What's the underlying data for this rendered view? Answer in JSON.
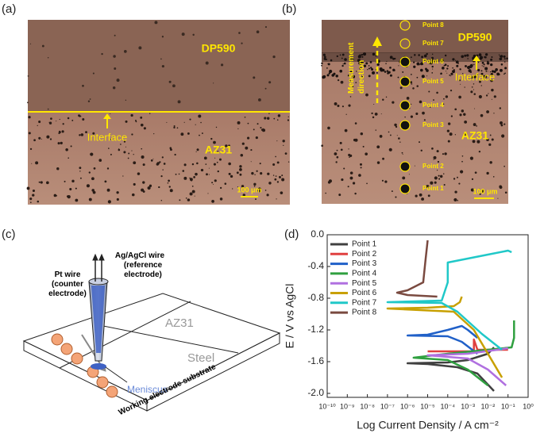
{
  "panels": {
    "a": {
      "label": "(a)",
      "top": "DP590",
      "interface": "Interface",
      "bottom": "AZ31",
      "scale": "100 μm"
    },
    "b": {
      "label": "(b)",
      "top": "DP590",
      "interface": "Interface",
      "bottom": "AZ31",
      "scale": "100 μm",
      "direction": [
        "Measurement",
        "direction"
      ],
      "points": [
        "Point 8",
        "Point 7",
        "Point 6",
        "Point 5",
        "Point 4",
        "Point 3",
        "Point 2",
        "Point 1"
      ]
    },
    "c": {
      "label": "(c)",
      "pt_wire": [
        "Pt wire",
        "(counter",
        "electrode)"
      ],
      "ref_wire": [
        "Ag/AgCl wire",
        "(reference",
        "electrode)"
      ],
      "az31": "AZ31",
      "steel": "Steel",
      "meniscus": "Meniscus",
      "substrate": "Working electrode substrate"
    },
    "d": {
      "label": "(d)"
    }
  },
  "chart_data": {
    "type": "line",
    "xlabel": "Log Current Density / A cm⁻²",
    "ylabel": "E / V vs AgCl",
    "xscale": "log",
    "xlim": [
      1e-10,
      1
    ],
    "ylim": [
      -2.05,
      0
    ],
    "xticks": [
      {
        "value": 1e-10,
        "label": "10⁻¹⁰"
      },
      {
        "value": 1e-09,
        "label": "10⁻⁹"
      },
      {
        "value": 1e-08,
        "label": "10⁻⁸"
      },
      {
        "value": 1e-07,
        "label": "10⁻⁷"
      },
      {
        "value": 1e-06,
        "label": "10⁻⁶"
      },
      {
        "value": 1e-05,
        "label": "10⁻⁵"
      },
      {
        "value": 0.0001,
        "label": "10⁻⁴"
      },
      {
        "value": 0.001,
        "label": "10⁻³"
      },
      {
        "value": 0.01,
        "label": "10⁻²"
      },
      {
        "value": 0.1,
        "label": "10⁻¹"
      },
      {
        "value": 1,
        "label": "10⁰"
      }
    ],
    "yticks": [
      {
        "value": 0,
        "label": "0.0"
      },
      -0.4,
      -0.8,
      -1.2,
      -1.6,
      {
        "value": -2,
        "label": "-2.0"
      }
    ],
    "legend": "upper left",
    "series": [
      {
        "name": "Point 1",
        "color": "#404040",
        "x": [
          0.02,
          0.003,
          0.0003,
          1e-05,
          1e-06,
          0.0001,
          0.001,
          0.01,
          0.02
        ],
        "values": [
          -1.97,
          -1.75,
          -1.67,
          -1.63,
          -1.62,
          -1.61,
          -1.58,
          -1.5,
          -1.42
        ]
      },
      {
        "name": "Point 2",
        "color": "#e04040",
        "x": [
          1e-05,
          0.001,
          0.002,
          0.002,
          0.003,
          0.1
        ],
        "values": [
          -1.47,
          -1.47,
          -1.47,
          -1.32,
          -1.45,
          -1.45
        ]
      },
      {
        "name": "Point 3",
        "color": "#2060c8",
        "x": [
          0.003,
          0.0005,
          0.0001,
          1e-06,
          1e-05,
          0.0001,
          0.0005,
          0.001,
          0.003
        ],
        "values": [
          -1.5,
          -1.35,
          -1.28,
          -1.27,
          -1.26,
          -1.2,
          -1.15,
          -1.2,
          -1.3
        ]
      },
      {
        "name": "Point 4",
        "color": "#30a040",
        "x": [
          0.01,
          0.001,
          0.0001,
          2e-06,
          0.0001,
          0.01,
          0.15,
          0.2,
          0.2
        ],
        "values": [
          -1.9,
          -1.7,
          -1.58,
          -1.55,
          -1.5,
          -1.45,
          -1.42,
          -1.3,
          -1.08
        ]
      },
      {
        "name": "Point 5",
        "color": "#b070e0",
        "x": [
          0.08,
          0.01,
          0.001,
          1e-05,
          0.001,
          0.03,
          0.1
        ],
        "values": [
          -1.9,
          -1.7,
          -1.56,
          -1.52,
          -1.5,
          -1.45,
          -1.43
        ]
      },
      {
        "name": "Point 6",
        "color": "#c8a000",
        "x": [
          0.05,
          0.01,
          0.002,
          0.0002,
          1e-07,
          1e-05,
          0.0002,
          0.0004,
          0.0005
        ],
        "values": [
          -1.8,
          -1.5,
          -1.2,
          -0.97,
          -0.93,
          -0.92,
          -0.9,
          -0.85,
          -0.78
        ]
      },
      {
        "name": "Point 7",
        "color": "#20c8c8",
        "x": [
          0.05,
          0.005,
          0.0003,
          5e-05,
          1e-07,
          5e-05,
          0.0001,
          0.0001,
          0.01,
          0.1,
          0.15
        ],
        "values": [
          -1.45,
          -1.25,
          -0.97,
          -0.86,
          -0.85,
          -0.83,
          -0.6,
          -0.35,
          -0.25,
          -0.2,
          -0.22
        ]
      },
      {
        "name": "Point 8",
        "color": "#7a4a40",
        "x": [
          3e-05,
          1e-06,
          3e-07,
          1e-06,
          6e-06,
          8e-06,
          1e-05
        ],
        "values": [
          -0.78,
          -0.76,
          -0.73,
          -0.7,
          -0.6,
          -0.3,
          -0.07
        ]
      }
    ]
  }
}
